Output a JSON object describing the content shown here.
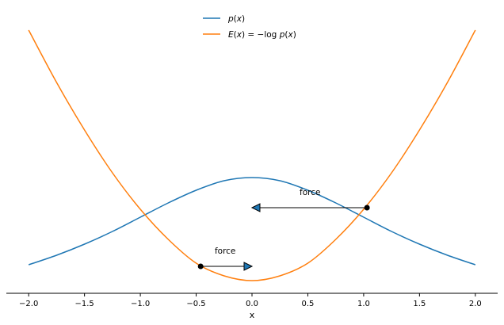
{
  "chart_data": {
    "type": "line",
    "xlabel": "x",
    "ylabel": "",
    "xlim": [
      -2.2,
      2.2
    ],
    "ylim": [
      0,
      1.8
    ],
    "xticks": [
      -2.0,
      -1.5,
      -1.0,
      -0.5,
      0.0,
      0.5,
      1.0,
      1.5,
      2.0
    ],
    "xtick_labels": [
      "−2.0",
      "−1.5",
      "−1.0",
      "−0.5",
      "0.0",
      "0.5",
      "1.0",
      "1.5",
      "2.0"
    ],
    "grid": false,
    "legend_position": "top-center",
    "series": [
      {
        "name": "p(x)",
        "legend_parts": [
          {
            "t": "p",
            "i": true
          },
          {
            "t": "(",
            "i": false
          },
          {
            "t": "x",
            "i": true
          },
          {
            "t": ")",
            "i": false
          }
        ],
        "color": "#1f77b4",
        "x": [
          -2.0,
          -1.75,
          -1.5,
          -1.25,
          -1.0,
          -0.75,
          -0.5,
          -0.25,
          0.0,
          0.25,
          0.5,
          0.75,
          1.0,
          1.25,
          1.5,
          1.75,
          2.0
        ],
        "y": [
          0.18,
          0.24,
          0.31,
          0.39,
          0.48,
          0.57,
          0.65,
          0.71,
          0.73,
          0.71,
          0.65,
          0.57,
          0.48,
          0.39,
          0.31,
          0.24,
          0.18
        ]
      },
      {
        "name": "E(x) = −log p(x)",
        "legend_parts": [
          {
            "t": "E",
            "i": true
          },
          {
            "t": "(",
            "i": false
          },
          {
            "t": "x",
            "i": true
          },
          {
            "t": ") = −log ",
            "i": false
          },
          {
            "t": "p",
            "i": true
          },
          {
            "t": "(",
            "i": false
          },
          {
            "t": "x",
            "i": true
          },
          {
            "t": ")",
            "i": false
          }
        ],
        "color": "#ff7f0e",
        "x": [
          -2.0,
          -1.75,
          -1.5,
          -1.25,
          -1.0,
          -0.75,
          -0.5,
          -0.25,
          0.0,
          0.25,
          0.5,
          0.75,
          1.0,
          1.25,
          1.5,
          1.75,
          2.0
        ],
        "y": [
          1.66,
          1.33,
          1.03,
          0.76,
          0.53,
          0.34,
          0.19,
          0.11,
          0.08,
          0.11,
          0.19,
          0.34,
          0.53,
          0.76,
          1.03,
          1.33,
          1.66
        ]
      }
    ],
    "points": [
      {
        "x": -0.46,
        "y": 0.17
      },
      {
        "x": 1.03,
        "y": 0.54
      }
    ],
    "annotations": [
      {
        "text": "force",
        "from": [
          -0.46,
          0.17
        ],
        "to": [
          0.0,
          0.17
        ],
        "label_x": -0.24,
        "label_y": 0.25
      },
      {
        "text": "force",
        "from": [
          1.03,
          0.54
        ],
        "to": [
          0.0,
          0.54
        ],
        "label_x": 0.52,
        "label_y": 0.62
      }
    ]
  }
}
